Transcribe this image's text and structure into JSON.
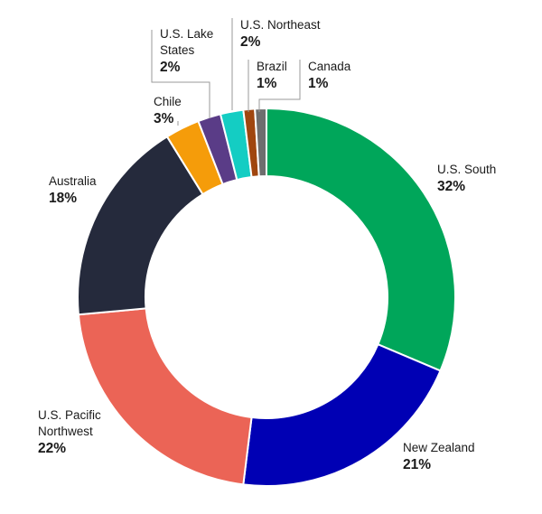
{
  "chart_data": {
    "type": "pie",
    "variant": "donut",
    "title": "",
    "legend": "none",
    "slices": [
      {
        "label_lines": [
          "U.S. South"
        ],
        "value": 32,
        "value_label": "32%",
        "color": "#00a65a"
      },
      {
        "label_lines": [
          "New Zealand"
        ],
        "value": 21,
        "value_label": "21%",
        "color": "#0000b4"
      },
      {
        "label_lines": [
          "U.S. Pacific",
          "Northwest"
        ],
        "value": 22,
        "value_label": "22%",
        "color": "#eb6456"
      },
      {
        "label_lines": [
          "Australia"
        ],
        "value": 18,
        "value_label": "18%",
        "color": "#252a3c"
      },
      {
        "label_lines": [
          "Chile"
        ],
        "value": 3,
        "value_label": "3%",
        "color": "#f59c0a"
      },
      {
        "label_lines": [
          "U.S. Lake",
          "States"
        ],
        "value": 2,
        "value_label": "2%",
        "color": "#5a3c87"
      },
      {
        "label_lines": [
          "U.S. Northeast"
        ],
        "value": 2,
        "value_label": "2%",
        "color": "#14cdc3"
      },
      {
        "label_lines": [
          "Brazil"
        ],
        "value": 1,
        "value_label": "1%",
        "color": "#a0460f"
      },
      {
        "label_lines": [
          "Canada"
        ],
        "value": 1,
        "value_label": "1%",
        "color": "#6e6e6e"
      }
    ]
  }
}
